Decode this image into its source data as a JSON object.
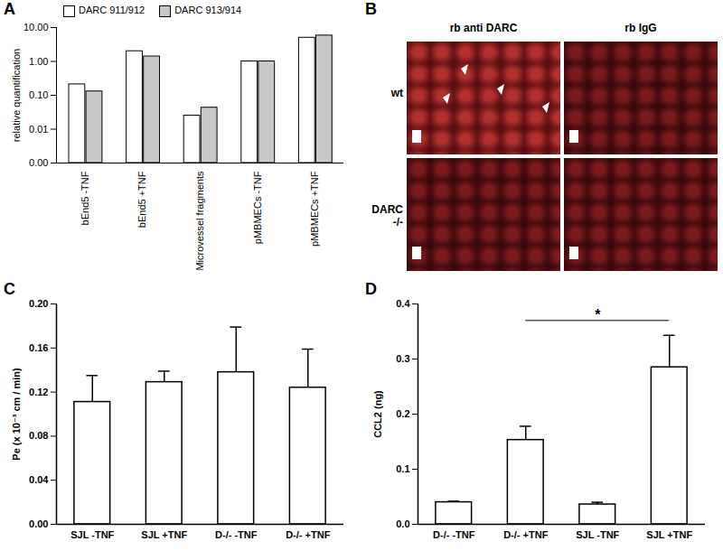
{
  "chart_data": [
    {
      "type": "bar",
      "title": "A",
      "categories": [
        "bEnd5 -TNF",
        "bEnd5 +TNF",
        "Microvessel fragments",
        "pMBMECs -TNF",
        "pMBMECs +TNF"
      ],
      "series": [
        {
          "name": "DARC 911/912",
          "color": "#ffffff",
          "values": [
            0.21,
            2.0,
            0.025,
            1.0,
            5.0
          ]
        },
        {
          "name": "DARC 913/914",
          "color": "#c8c8c8",
          "values": [
            0.13,
            1.4,
            0.043,
            1.0,
            5.8
          ]
        }
      ],
      "y_label": "relative quantification",
      "log": "y",
      "ylim": [
        0.001,
        10
      ],
      "yticks": [
        {
          "value": 0.001,
          "label": "0.00"
        },
        {
          "value": 0.01,
          "label": "0.01"
        },
        {
          "value": 0.1,
          "label": "0.10"
        },
        {
          "value": 1,
          "label": "1.00"
        },
        {
          "value": 10,
          "label": "10.00"
        }
      ],
      "legend": "top"
    },
    {
      "type": "bar",
      "title": "C",
      "categories": [
        "SJL -TNF",
        "SJL +TNF",
        "D-/- -TNF",
        "D-/- +TNF"
      ],
      "values": [
        0.111,
        0.129,
        0.138,
        0.124
      ],
      "errors": [
        0.024,
        0.01,
        0.041,
        0.035
      ],
      "color": "#ffffff",
      "y_label": "Pe (x 10⁻³ cm / min)",
      "ylim": [
        0,
        0.2
      ],
      "yticks": [
        {
          "value": 0,
          "label": "0.00"
        },
        {
          "value": 0.04,
          "label": "0.04"
        },
        {
          "value": 0.08,
          "label": "0.08"
        },
        {
          "value": 0.12,
          "label": "0.12"
        },
        {
          "value": 0.16,
          "label": "0.16"
        },
        {
          "value": 0.2,
          "label": "0.20"
        }
      ]
    },
    {
      "type": "bar",
      "title": "D",
      "categories": [
        "D-/- -TNF",
        "D-/- +TNF",
        "SJL -TNF",
        "SJL +TNF"
      ],
      "values": [
        0.04,
        0.153,
        0.036,
        0.285
      ],
      "errors": [
        0.002,
        0.025,
        0.004,
        0.058
      ],
      "color": "#ffffff",
      "y_label": "CCL2 (ng)",
      "ylim": [
        0,
        0.4
      ],
      "yticks": [
        {
          "value": 0,
          "label": "0.0"
        },
        {
          "value": 0.1,
          "label": "0.1"
        },
        {
          "value": 0.2,
          "label": "0.2"
        },
        {
          "value": 0.3,
          "label": "0.3"
        },
        {
          "value": 0.4,
          "label": "0.4"
        }
      ],
      "annotations": [
        {
          "text": "*",
          "from": "D-/- +TNF",
          "to": "SJL +TNF",
          "y": 0.37
        }
      ]
    }
  ],
  "image_panel": {
    "title": "B",
    "columns": [
      "rb anti DARC",
      "rb IgG"
    ],
    "rows": [
      "wt",
      "DARC -/-"
    ]
  }
}
